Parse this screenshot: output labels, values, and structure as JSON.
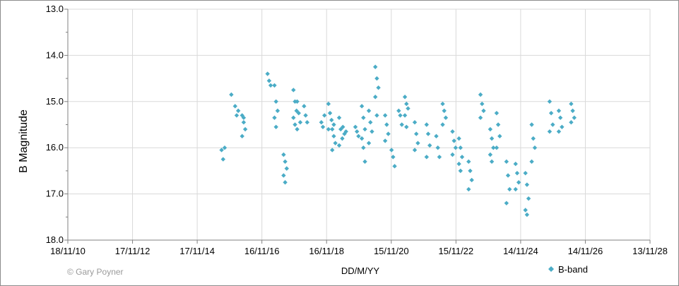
{
  "credit": "© Gary Poyner",
  "chart_data": {
    "type": "scatter",
    "title": "",
    "xlabel": "DD/M/YY",
    "ylabel": "B Magnitude",
    "y_inverted": true,
    "ylim": [
      13.0,
      18.0
    ],
    "y_ticks": [
      "13.0",
      "14.0",
      "15.0",
      "16.0",
      "17.0",
      "18.0"
    ],
    "x_ticks": [
      "18/11/10",
      "17/11/12",
      "17/11/14",
      "16/11/16",
      "16/11/18",
      "15/11/20",
      "15/11/22",
      "14/11/24",
      "14/11/26",
      "13/11/28"
    ],
    "xlim": [
      "2010-11-18",
      "2028-11-13"
    ],
    "grid": true,
    "legend": "bottom-right",
    "series": [
      {
        "name": "B-band",
        "color": "#4bacc6",
        "marker": "diamond",
        "clusters": [
          {
            "x": "2015-09",
            "y": [
              16.05,
              16.25,
              16.0
            ]
          },
          {
            "x": "2015-12",
            "y": [
              14.85
            ]
          },
          {
            "x": "2016-02",
            "y": [
              15.1,
              15.3,
              15.2
            ]
          },
          {
            "x": "2016-04",
            "y": [
              15.3,
              15.45,
              15.6,
              15.75,
              15.35
            ]
          },
          {
            "x": "2017-02",
            "y": [
              14.4,
              14.55,
              14.65
            ]
          },
          {
            "x": "2017-04",
            "y": [
              14.65,
              15.0,
              15.2,
              15.35,
              15.55
            ]
          },
          {
            "x": "2017-08",
            "y": [
              16.15,
              16.3,
              16.45,
              16.6,
              16.75
            ]
          },
          {
            "x": "2017-11",
            "y": [
              14.75,
              15.0,
              15.2,
              15.35,
              15.5
            ]
          },
          {
            "x": "2018-01",
            "y": [
              15.0,
              15.25,
              15.45,
              15.6
            ]
          },
          {
            "x": "2018-03",
            "y": [
              15.1,
              15.3,
              15.45
            ]
          },
          {
            "x": "2018-10",
            "y": [
              15.45,
              15.55,
              15.3
            ]
          },
          {
            "x": "2018-12",
            "y": [
              15.05,
              15.25,
              15.4,
              15.6
            ]
          },
          {
            "x": "2019-02",
            "y": [
              15.6,
              15.75,
              15.9,
              16.05,
              15.5
            ]
          },
          {
            "x": "2019-04",
            "y": [
              15.35,
              15.6,
              15.8,
              15.95
            ]
          },
          {
            "x": "2019-06",
            "y": [
              15.55,
              15.7,
              15.65
            ]
          },
          {
            "x": "2019-10",
            "y": [
              15.55,
              15.65,
              15.75
            ]
          },
          {
            "x": "2020-01",
            "y": [
              15.1,
              15.35,
              15.6,
              15.8,
              16.0,
              16.3
            ]
          },
          {
            "x": "2020-03",
            "y": [
              15.2,
              15.45,
              15.65,
              15.9
            ]
          },
          {
            "x": "2020-06",
            "y": [
              14.25,
              14.5,
              14.7,
              14.9,
              15.3
            ]
          },
          {
            "x": "2020-09",
            "y": [
              15.3,
              15.5,
              15.7,
              15.85
            ]
          },
          {
            "x": "2020-12",
            "y": [
              16.05,
              16.2,
              16.4
            ]
          },
          {
            "x": "2021-02",
            "y": [
              15.2,
              15.3,
              15.5
            ]
          },
          {
            "x": "2021-05",
            "y": [
              14.9,
              15.05,
              15.15,
              15.3,
              15.55
            ]
          },
          {
            "x": "2021-08",
            "y": [
              15.45,
              15.7,
              15.9,
              16.05
            ]
          },
          {
            "x": "2022-01",
            "y": [
              15.5,
              15.7,
              15.95,
              16.2
            ]
          },
          {
            "x": "2022-04",
            "y": [
              15.75,
              16.0,
              16.2
            ]
          },
          {
            "x": "2022-07",
            "y": [
              15.05,
              15.2,
              15.35,
              15.5
            ]
          },
          {
            "x": "2022-10",
            "y": [
              15.65,
              15.85,
              16.0,
              16.15
            ]
          },
          {
            "x": "2023-01",
            "y": [
              15.8,
              16.0,
              16.2,
              16.35,
              16.5
            ]
          },
          {
            "x": "2023-04",
            "y": [
              16.3,
              16.5,
              16.7,
              16.9
            ]
          },
          {
            "x": "2023-09",
            "y": [
              14.85,
              15.05,
              15.2,
              15.35
            ]
          },
          {
            "x": "2023-12",
            "y": [
              15.6,
              15.8,
              16.0,
              16.15,
              16.3
            ]
          },
          {
            "x": "2024-03",
            "y": [
              15.25,
              15.5,
              15.75,
              16.0
            ]
          },
          {
            "x": "2024-06",
            "y": [
              16.3,
              16.6,
              16.9,
              17.2
            ]
          },
          {
            "x": "2024-10",
            "y": [
              16.35,
              16.55,
              16.75,
              16.9
            ]
          },
          {
            "x": "2025-01",
            "y": [
              16.55,
              16.8,
              17.1,
              17.35,
              17.45
            ]
          },
          {
            "x": "2025-04",
            "y": [
              15.5,
              15.8,
              16.0,
              16.3
            ]
          },
          {
            "x": "2025-10",
            "y": [
              15.0,
              15.25,
              15.5,
              15.65
            ]
          },
          {
            "x": "2026-02",
            "y": [
              15.2,
              15.35,
              15.55,
              15.65
            ]
          },
          {
            "x": "2026-06",
            "y": [
              15.05,
              15.2,
              15.35,
              15.45
            ]
          }
        ]
      }
    ]
  }
}
